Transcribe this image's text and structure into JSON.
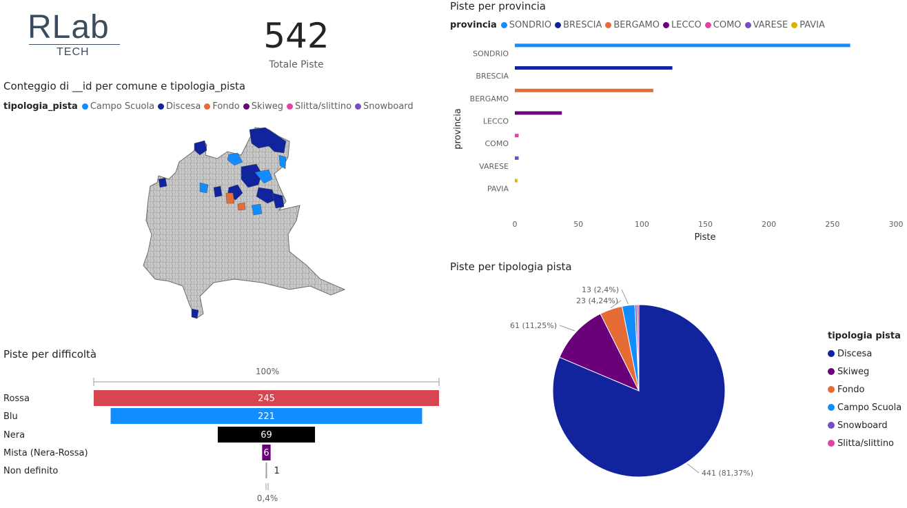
{
  "logo": {
    "main": "RLab",
    "sub": "TECH"
  },
  "kpi": {
    "value": "542",
    "label": "Totale Piste"
  },
  "map": {
    "title": "Conteggio di __id per comune e tipologia_pista",
    "legend_title": "tipologia_pista",
    "legend": [
      {
        "label": "Campo Scuola",
        "color": "#118DFF"
      },
      {
        "label": "Discesa",
        "color": "#12239E"
      },
      {
        "label": "Fondo",
        "color": "#E66C37"
      },
      {
        "label": "Skiweg",
        "color": "#6B007B"
      },
      {
        "label": "Slitta/slittino",
        "color": "#E044A7"
      },
      {
        "label": "Snowboard",
        "color": "#744EC2"
      }
    ]
  },
  "funnel": {
    "title": "Piste per difficoltà",
    "top_label": "100%",
    "bottom_label": "0,4%"
  },
  "province": {
    "title": "Piste per provincia",
    "legend_title": "provincia"
  },
  "pie": {
    "title": "Piste per tipologia pista",
    "legend_title": "tipologia pista"
  },
  "chart_data": [
    {
      "type": "bar",
      "orientation": "horizontal",
      "title": "Piste per provincia",
      "xlabel": "Piste",
      "ylabel": "provincia",
      "categories": [
        "SONDRIO",
        "BRESCIA",
        "BERGAMO",
        "LECCO",
        "COMO",
        "VARESE",
        "PAVIA"
      ],
      "values": [
        264,
        124,
        109,
        37,
        3,
        3,
        2
      ],
      "colors": [
        "#118DFF",
        "#12239E",
        "#E66C37",
        "#6B007B",
        "#E044A7",
        "#744EC2",
        "#D9B300"
      ],
      "xlim": [
        0,
        300
      ],
      "xticks": [
        "0",
        "50",
        "100",
        "150",
        "200",
        "250",
        "300"
      ],
      "legend_position": "top-left"
    },
    {
      "type": "funnel",
      "title": "Piste per difficoltà",
      "categories": [
        "Rossa",
        "Blu",
        "Nera",
        "Mista (Nera-Rossa)",
        "Non definito"
      ],
      "values": [
        245,
        221,
        69,
        6,
        1
      ],
      "colors": [
        "#D64550",
        "#118DFF",
        "#000000",
        "#6B007B",
        "#A0A0A0"
      ]
    },
    {
      "type": "pie",
      "title": "Piste per tipologia pista",
      "categories": [
        "Discesa",
        "Skiweg",
        "Fondo",
        "Campo Scuola",
        "Snowboard",
        "Slitta/slittino"
      ],
      "values": [
        441,
        61,
        23,
        13,
        2,
        2
      ],
      "colors": [
        "#12239E",
        "#6B007B",
        "#E66C37",
        "#118DFF",
        "#744EC2",
        "#E044A7"
      ],
      "data_labels": [
        "441 (81,37%)",
        "61 (11,25%)",
        "23 (4,24%)",
        "13 (2,4%)",
        "",
        ""
      ],
      "legend_position": "right"
    }
  ]
}
